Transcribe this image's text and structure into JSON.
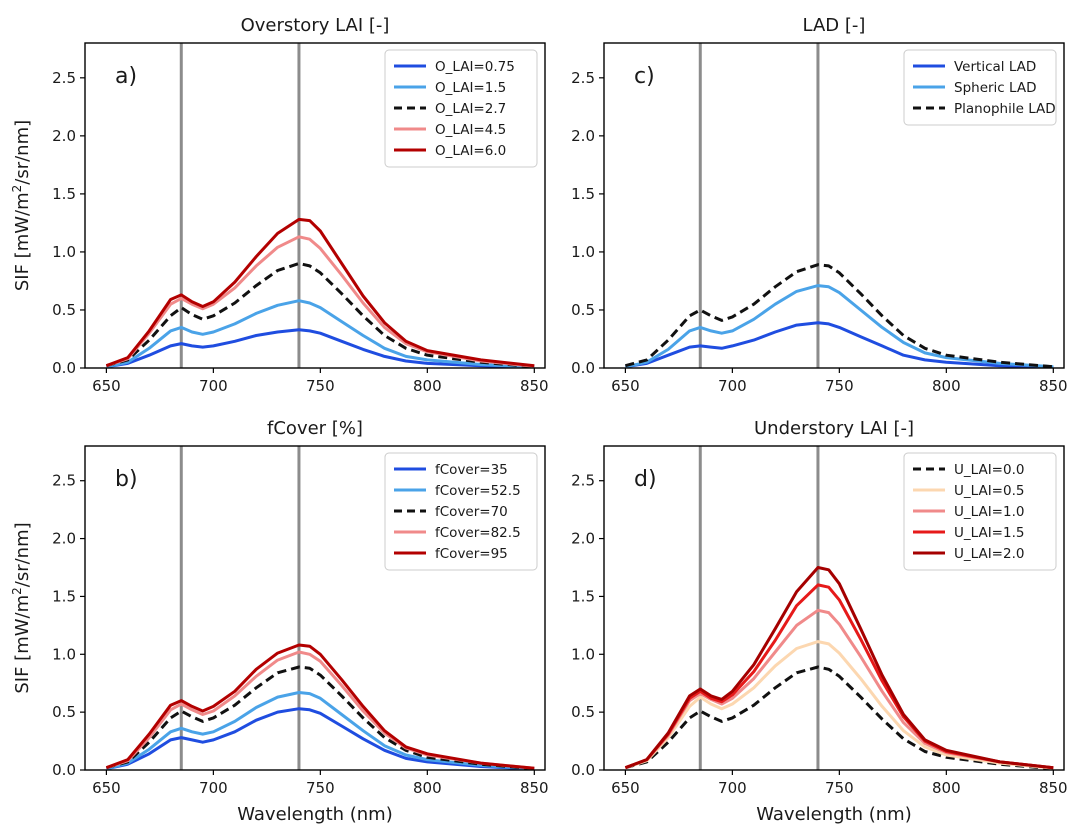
{
  "figure": {
    "ylabel_main": "SIF [mW/m",
    "ylabel_sup": "2",
    "ylabel_tail": "/sr/nm]",
    "xlabel": "Wavelength (nm)"
  },
  "chart_data": [
    {
      "type": "line",
      "panel": "a)",
      "title": "Overstory LAI [-]",
      "xlabel": "",
      "ylabel": "SIF [mW/m2/sr/nm]",
      "xlim": [
        640,
        855
      ],
      "ylim": [
        0,
        2.8
      ],
      "xticks": [
        650,
        700,
        750,
        800,
        850
      ],
      "yticks": [
        0.0,
        0.5,
        1.0,
        1.5,
        2.0,
        2.5
      ],
      "vlines": [
        685,
        740
      ],
      "legend_position": "top-right",
      "x": [
        650,
        660,
        670,
        680,
        685,
        690,
        695,
        700,
        710,
        720,
        730,
        740,
        745,
        750,
        760,
        770,
        780,
        790,
        800,
        825,
        850
      ],
      "series": [
        {
          "name": "O_LAI=0.75",
          "color": "#1f4de0",
          "dash": "solid",
          "values": [
            0.01,
            0.04,
            0.11,
            0.19,
            0.21,
            0.19,
            0.18,
            0.19,
            0.23,
            0.28,
            0.31,
            0.33,
            0.32,
            0.3,
            0.23,
            0.16,
            0.1,
            0.06,
            0.04,
            0.02,
            0.005
          ]
        },
        {
          "name": "O_LAI=1.5",
          "color": "#4aa3e8",
          "dash": "solid",
          "values": [
            0.01,
            0.05,
            0.17,
            0.32,
            0.35,
            0.31,
            0.29,
            0.31,
            0.38,
            0.47,
            0.54,
            0.58,
            0.56,
            0.52,
            0.4,
            0.28,
            0.17,
            0.1,
            0.07,
            0.03,
            0.008
          ]
        },
        {
          "name": "O_LAI=2.7",
          "color": "#111111",
          "dash": "dashed",
          "values": [
            0.02,
            0.07,
            0.24,
            0.45,
            0.52,
            0.46,
            0.42,
            0.45,
            0.56,
            0.71,
            0.84,
            0.9,
            0.88,
            0.82,
            0.64,
            0.45,
            0.28,
            0.17,
            0.11,
            0.05,
            0.01
          ]
        },
        {
          "name": "O_LAI=4.5",
          "color": "#f08a8a",
          "dash": "solid",
          "values": [
            0.02,
            0.08,
            0.3,
            0.55,
            0.6,
            0.55,
            0.51,
            0.55,
            0.69,
            0.88,
            1.04,
            1.13,
            1.11,
            1.03,
            0.8,
            0.56,
            0.35,
            0.21,
            0.14,
            0.06,
            0.015
          ]
        },
        {
          "name": "O_LAI=6.0",
          "color": "#b30000",
          "dash": "solid",
          "values": [
            0.02,
            0.09,
            0.32,
            0.59,
            0.63,
            0.57,
            0.53,
            0.57,
            0.74,
            0.96,
            1.16,
            1.28,
            1.27,
            1.18,
            0.9,
            0.62,
            0.39,
            0.23,
            0.15,
            0.07,
            0.02
          ]
        }
      ]
    },
    {
      "type": "line",
      "panel": "c)",
      "title": "LAD [-]",
      "xlabel": "",
      "ylabel": "",
      "xlim": [
        640,
        855
      ],
      "ylim": [
        0,
        2.8
      ],
      "xticks": [
        650,
        700,
        750,
        800,
        850
      ],
      "yticks": [
        0.0,
        0.5,
        1.0,
        1.5,
        2.0,
        2.5
      ],
      "vlines": [
        685,
        740
      ],
      "legend_position": "top-right",
      "x": [
        650,
        660,
        670,
        680,
        685,
        690,
        695,
        700,
        710,
        720,
        730,
        740,
        745,
        750,
        760,
        770,
        780,
        790,
        800,
        825,
        850
      ],
      "series": [
        {
          "name": "Vertical LAD",
          "color": "#1f4de0",
          "dash": "solid",
          "values": [
            0.01,
            0.04,
            0.11,
            0.18,
            0.19,
            0.18,
            0.17,
            0.19,
            0.24,
            0.31,
            0.37,
            0.39,
            0.38,
            0.35,
            0.27,
            0.19,
            0.11,
            0.07,
            0.05,
            0.02,
            0.005
          ]
        },
        {
          "name": "Spheric LAD",
          "color": "#4aa3e8",
          "dash": "solid",
          "values": [
            0.01,
            0.05,
            0.16,
            0.32,
            0.35,
            0.32,
            0.3,
            0.32,
            0.42,
            0.55,
            0.66,
            0.71,
            0.7,
            0.65,
            0.5,
            0.35,
            0.22,
            0.13,
            0.09,
            0.04,
            0.01
          ]
        },
        {
          "name": "Planophile LAD",
          "color": "#111111",
          "dash": "dashed",
          "values": [
            0.02,
            0.07,
            0.24,
            0.45,
            0.5,
            0.45,
            0.41,
            0.44,
            0.55,
            0.7,
            0.83,
            0.89,
            0.88,
            0.82,
            0.64,
            0.45,
            0.28,
            0.17,
            0.11,
            0.05,
            0.01
          ]
        }
      ]
    },
    {
      "type": "line",
      "panel": "b)",
      "title": "fCover [%]",
      "xlabel": "Wavelength (nm)",
      "ylabel": "SIF [mW/m2/sr/nm]",
      "xlim": [
        640,
        855
      ],
      "ylim": [
        0,
        2.8
      ],
      "xticks": [
        650,
        700,
        750,
        800,
        850
      ],
      "yticks": [
        0.0,
        0.5,
        1.0,
        1.5,
        2.0,
        2.5
      ],
      "vlines": [
        685,
        740
      ],
      "legend_position": "top-right",
      "x": [
        650,
        660,
        670,
        680,
        685,
        690,
        695,
        700,
        710,
        720,
        730,
        740,
        745,
        750,
        760,
        770,
        780,
        790,
        800,
        825,
        850
      ],
      "series": [
        {
          "name": "fCover=35",
          "color": "#1f4de0",
          "dash": "solid",
          "values": [
            0.01,
            0.05,
            0.14,
            0.26,
            0.28,
            0.26,
            0.24,
            0.26,
            0.33,
            0.43,
            0.5,
            0.53,
            0.52,
            0.49,
            0.38,
            0.27,
            0.17,
            0.1,
            0.07,
            0.03,
            0.008
          ]
        },
        {
          "name": "fCover=52.5",
          "color": "#4aa3e8",
          "dash": "solid",
          "values": [
            0.01,
            0.06,
            0.18,
            0.33,
            0.36,
            0.33,
            0.31,
            0.33,
            0.42,
            0.54,
            0.63,
            0.67,
            0.66,
            0.62,
            0.48,
            0.34,
            0.21,
            0.13,
            0.09,
            0.04,
            0.01
          ]
        },
        {
          "name": "fCover=70",
          "color": "#111111",
          "dash": "dashed",
          "values": [
            0.02,
            0.07,
            0.24,
            0.45,
            0.51,
            0.46,
            0.42,
            0.45,
            0.56,
            0.71,
            0.84,
            0.89,
            0.88,
            0.82,
            0.64,
            0.45,
            0.28,
            0.17,
            0.11,
            0.05,
            0.01
          ]
        },
        {
          "name": "fCover=82.5",
          "color": "#f08a8a",
          "dash": "solid",
          "values": [
            0.02,
            0.08,
            0.28,
            0.52,
            0.57,
            0.52,
            0.48,
            0.51,
            0.64,
            0.81,
            0.95,
            1.02,
            1.0,
            0.94,
            0.73,
            0.51,
            0.32,
            0.19,
            0.13,
            0.06,
            0.015
          ]
        },
        {
          "name": "fCover=95",
          "color": "#b30000",
          "dash": "solid",
          "values": [
            0.02,
            0.09,
            0.31,
            0.56,
            0.6,
            0.55,
            0.51,
            0.55,
            0.68,
            0.87,
            1.01,
            1.08,
            1.07,
            1.0,
            0.78,
            0.55,
            0.34,
            0.2,
            0.14,
            0.06,
            0.015
          ]
        }
      ]
    },
    {
      "type": "line",
      "panel": "d)",
      "title": "Understory LAI [-]",
      "xlabel": "Wavelength (nm)",
      "ylabel": "",
      "xlim": [
        640,
        855
      ],
      "ylim": [
        0,
        2.8
      ],
      "xticks": [
        650,
        700,
        750,
        800,
        850
      ],
      "yticks": [
        0.0,
        0.5,
        1.0,
        1.5,
        2.0,
        2.5
      ],
      "vlines": [
        685,
        740
      ],
      "legend_position": "top-right",
      "x": [
        650,
        660,
        670,
        680,
        685,
        690,
        695,
        700,
        710,
        720,
        730,
        740,
        745,
        750,
        760,
        770,
        780,
        790,
        800,
        825,
        850
      ],
      "series": [
        {
          "name": "U_LAI=0.0",
          "color": "#111111",
          "dash": "dashed",
          "values": [
            0.02,
            0.07,
            0.24,
            0.45,
            0.51,
            0.46,
            0.42,
            0.45,
            0.56,
            0.71,
            0.84,
            0.89,
            0.87,
            0.81,
            0.63,
            0.44,
            0.27,
            0.16,
            0.11,
            0.05,
            0.01
          ]
        },
        {
          "name": "U_LAI=0.5",
          "color": "#fcd7b0",
          "dash": "solid",
          "values": [
            0.02,
            0.08,
            0.28,
            0.55,
            0.63,
            0.57,
            0.53,
            0.57,
            0.71,
            0.9,
            1.05,
            1.11,
            1.09,
            1.01,
            0.79,
            0.55,
            0.34,
            0.2,
            0.13,
            0.06,
            0.015
          ]
        },
        {
          "name": "U_LAI=1.0",
          "color": "#f08a8a",
          "dash": "solid",
          "values": [
            0.02,
            0.09,
            0.3,
            0.6,
            0.66,
            0.61,
            0.57,
            0.62,
            0.79,
            1.02,
            1.25,
            1.38,
            1.36,
            1.26,
            0.98,
            0.68,
            0.41,
            0.23,
            0.15,
            0.07,
            0.02
          ]
        },
        {
          "name": "U_LAI=1.5",
          "color": "#e61a1a",
          "dash": "solid",
          "values": [
            0.02,
            0.09,
            0.31,
            0.62,
            0.68,
            0.62,
            0.59,
            0.65,
            0.85,
            1.12,
            1.42,
            1.6,
            1.58,
            1.47,
            1.13,
            0.77,
            0.46,
            0.25,
            0.16,
            0.07,
            0.02
          ]
        },
        {
          "name": "U_LAI=2.0",
          "color": "#a50000",
          "dash": "solid",
          "values": [
            0.02,
            0.09,
            0.32,
            0.64,
            0.7,
            0.64,
            0.61,
            0.68,
            0.91,
            1.22,
            1.54,
            1.75,
            1.73,
            1.61,
            1.22,
            0.82,
            0.48,
            0.26,
            0.17,
            0.07,
            0.02
          ]
        }
      ]
    }
  ]
}
